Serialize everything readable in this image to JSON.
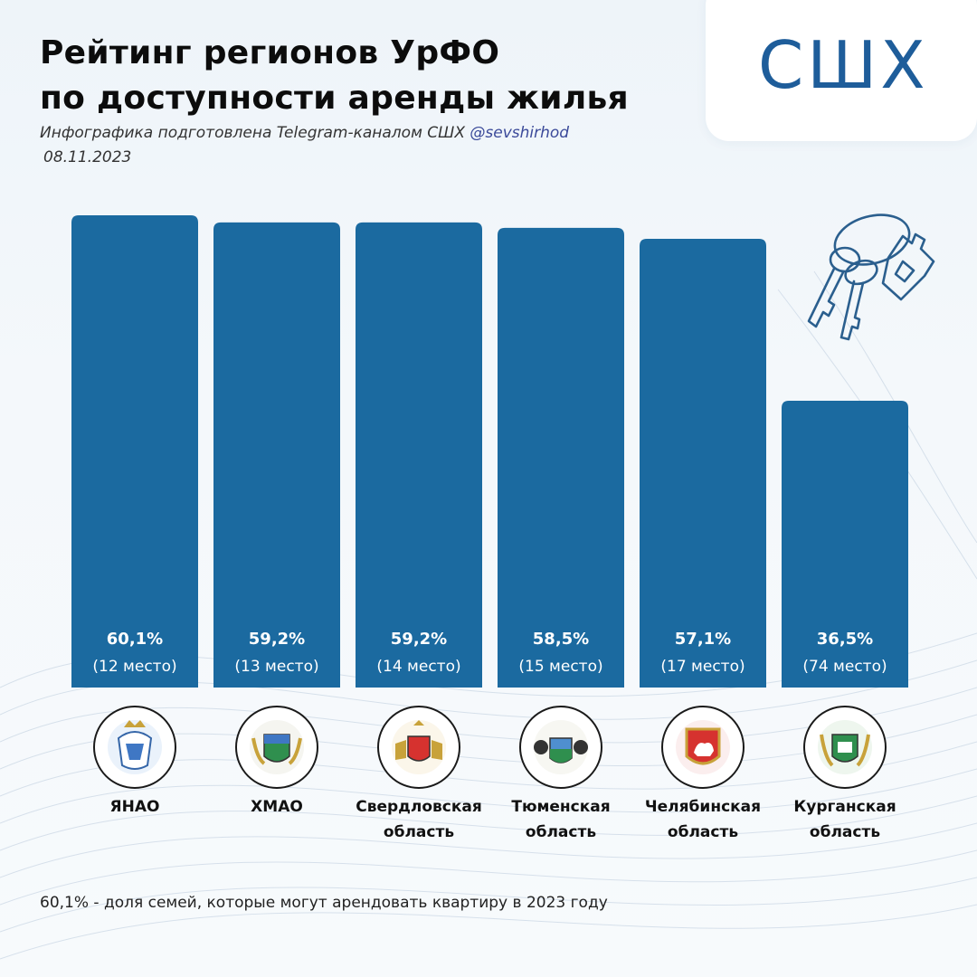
{
  "header": {
    "title_line1": "Рейтинг регионов УрФО",
    "title_line2": "по доступности аренды жилья",
    "subtitle": "Инфографика подготовлена Telegram-каналом СШХ",
    "handle": "@sevshirhod",
    "date": "08.11.2023"
  },
  "logo": {
    "text": "СШХ"
  },
  "icons": {
    "decoration": "keys-house-icon"
  },
  "colors": {
    "bar": "#1b6aa0",
    "label": "#ffffff",
    "logo": "#1e5d9a"
  },
  "footnote": "60,1% - доля семей, которые могут арендовать квартиру в 2023 году",
  "chart_data": {
    "type": "bar",
    "ylim": [
      0,
      62
    ],
    "categories": [
      "ЯНАО",
      "ХМАО",
      "Свердловская область",
      "Тюменская область",
      "Челябинская область",
      "Курганская область"
    ],
    "values": [
      60.1,
      59.2,
      59.2,
      58.5,
      57.1,
      36.5
    ],
    "value_labels": [
      "60,1%",
      "59,2%",
      "59,2%",
      "58,5%",
      "57,1%",
      "36,5%"
    ],
    "rank_labels": [
      "(12 место)",
      "(13 место)",
      "(14 место)",
      "(15 место)",
      "(17 место)",
      "(74 место)"
    ],
    "region_lines": [
      [
        "ЯНАО"
      ],
      [
        "ХМАО"
      ],
      [
        "Свердловская",
        "область"
      ],
      [
        "Тюменская",
        "область"
      ],
      [
        "Челябинская",
        "область"
      ],
      [
        "Курганская",
        "область"
      ]
    ],
    "crests": [
      "yanao-crest-icon",
      "khmao-crest-icon",
      "sverdlovsk-crest-icon",
      "tyumen-crest-icon",
      "chelyabinsk-crest-icon",
      "kurgan-crest-icon"
    ]
  }
}
